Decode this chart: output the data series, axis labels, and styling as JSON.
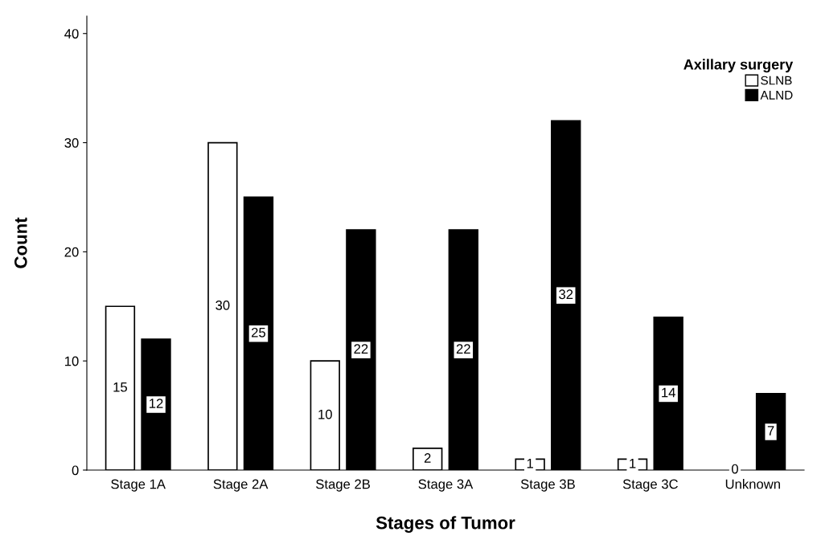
{
  "chart_data": {
    "type": "bar",
    "xlabel": "Stages of Tumor",
    "ylabel": "Count",
    "legend_title": "Axillary surgery",
    "categories": [
      "Stage 1A",
      "Stage 2A",
      "Stage 2B",
      "Stage 3A",
      "Stage 3B",
      "Stage 3C",
      "Unknown"
    ],
    "series": [
      {
        "name": "SLNB",
        "color": "#ffffff",
        "values": [
          15,
          30,
          10,
          2,
          1,
          1,
          0
        ]
      },
      {
        "name": "ALND",
        "color": "#000000",
        "values": [
          12,
          25,
          22,
          22,
          32,
          14,
          7
        ]
      }
    ],
    "ylim": [
      0,
      41.6
    ],
    "yticks": [
      0,
      10,
      20,
      30,
      40
    ],
    "grid": false,
    "legend": "top right",
    "data_labels": true
  }
}
